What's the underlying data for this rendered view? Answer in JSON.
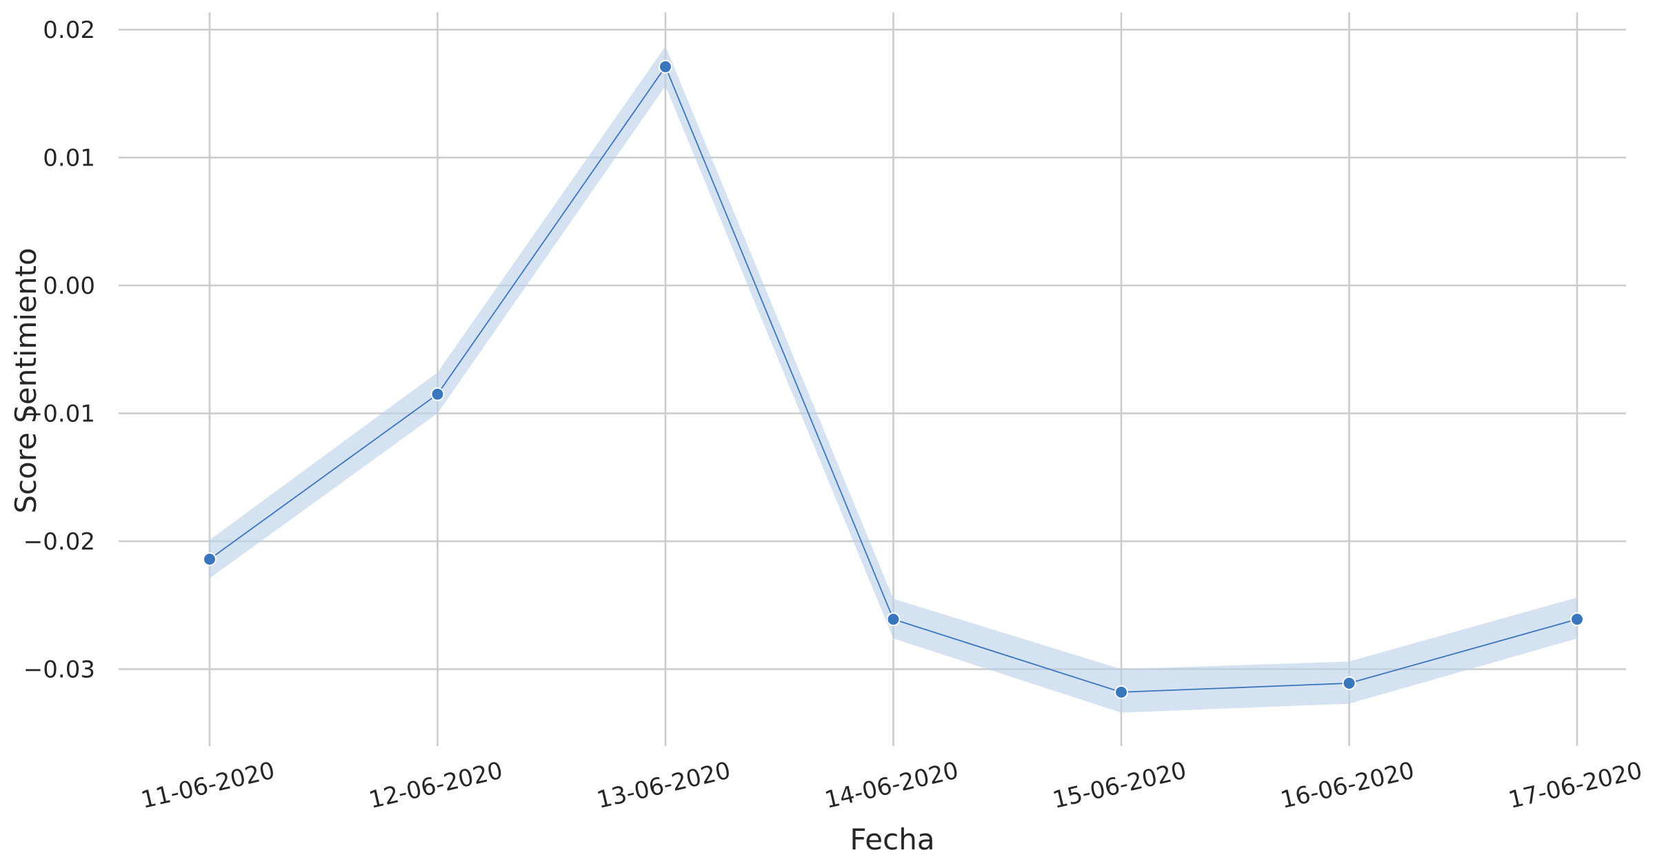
{
  "chart_data": {
    "type": "line",
    "title": "",
    "xlabel": "Fecha",
    "ylabel": "Score Sentimiento",
    "categories": [
      "11-06-2020",
      "12-06-2020",
      "13-06-2020",
      "14-06-2020",
      "15-06-2020",
      "16-06-2020",
      "17-06-2020"
    ],
    "series": [
      {
        "name": "Score Sentimiento",
        "values": [
          -0.0214,
          -0.0085,
          0.0171,
          -0.0261,
          -0.0318,
          -0.0311,
          -0.0261
        ],
        "ci_lower": [
          -0.0229,
          -0.01,
          0.0156,
          -0.0276,
          -0.0334,
          -0.0327,
          -0.0276
        ],
        "ci_upper": [
          -0.0199,
          -0.0068,
          0.0187,
          -0.0245,
          -0.03,
          -0.0294,
          -0.0244
        ]
      }
    ],
    "yticks": [
      0.02,
      0.01,
      0.0,
      -0.01,
      -0.02,
      -0.03
    ],
    "ytick_labels": [
      "0.02",
      "0.01",
      "0.00",
      "−0.01",
      "−0.02",
      "−0.03"
    ],
    "ylim": [
      -0.0355,
      0.0213
    ],
    "grid": true,
    "colors": {
      "line": "#3a76bd",
      "band": "#b8cfe8",
      "marker_edge": "#ffffff",
      "grid": "#cccccc",
      "text": "#262626"
    }
  }
}
